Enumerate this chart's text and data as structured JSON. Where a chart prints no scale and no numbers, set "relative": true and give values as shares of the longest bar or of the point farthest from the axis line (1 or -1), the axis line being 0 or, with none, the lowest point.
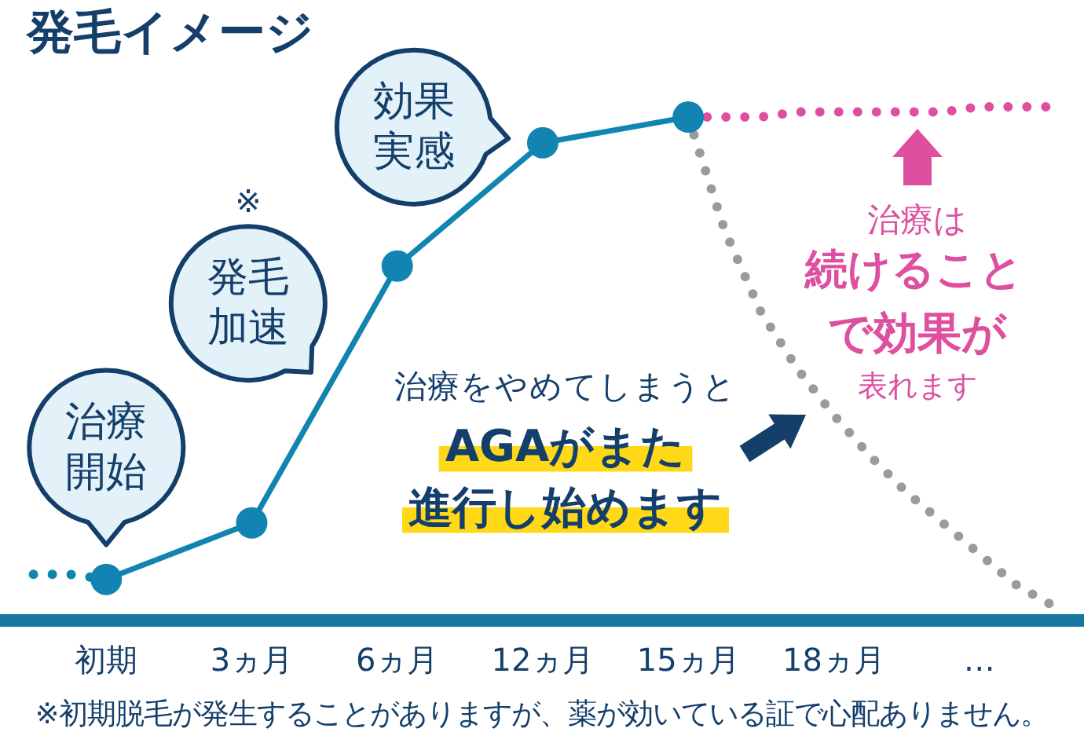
{
  "chart_data": {
    "type": "line",
    "title": "発毛イメージ",
    "relative": true,
    "categories": [
      null,
      null,
      "初期",
      null,
      null,
      null,
      "3ヵ月",
      null,
      null,
      null,
      "6ヵ月",
      null,
      null,
      null,
      "12ヵ月",
      null,
      null,
      null,
      "15ヵ月",
      null,
      null,
      null,
      "18ヵ月",
      null,
      null,
      null,
      "…",
      null,
      null
    ],
    "tick_labels": "x",
    "series": [
      {
        "color": "#1184b1",
        "line_style": "dotted",
        "marker": "none",
        "values": [
          0.09,
          0.09,
          0.08,
          null,
          null,
          null,
          null,
          null,
          null,
          null,
          null,
          null,
          null,
          null,
          null,
          null,
          null,
          null,
          null,
          null,
          null,
          null,
          null,
          null,
          null,
          null,
          null,
          null,
          null
        ]
      },
      {
        "color": "#1184b1",
        "line_style": "solid",
        "marker": "circle",
        "x": [
          "初期",
          "3ヵ月",
          "6ヵ月",
          "12ヵ月",
          "15ヵ月"
        ],
        "values": [
          0.08,
          0.19,
          0.69,
          0.93,
          0.98
        ]
      },
      {
        "color": "#df4f9f",
        "line_style": "dotted",
        "marker": "none",
        "values": [
          null,
          null,
          null,
          null,
          null,
          null,
          null,
          null,
          null,
          null,
          null,
          null,
          null,
          null,
          null,
          null,
          null,
          null,
          0.98,
          0.98,
          0.98,
          0.99,
          0.99,
          0.99,
          0.99,
          0.99,
          1,
          1,
          1
        ]
      },
      {
        "color": "#9b9b9b",
        "line_style": "dotted",
        "marker": "none",
        "values": [
          null,
          null,
          null,
          null,
          null,
          null,
          null,
          null,
          null,
          null,
          null,
          null,
          null,
          null,
          null,
          null,
          null,
          null,
          0.98,
          0.76,
          0.6,
          0.49,
          0.4,
          0.32,
          0.25,
          0.19,
          0.13,
          0.07,
          0.03
        ]
      }
    ],
    "annotations": [
      {
        "text": "治療開始",
        "x": "初期",
        "y": 0.08
      },
      "発毛加速",
      {
        "text": "効果実感",
        "x": "12ヵ月",
        "y": 0.93
      },
      "※",
      "治療をやめてしまうと",
      "AGAがまた",
      "進行し始めます",
      "治療は",
      "続けること",
      "で効果が",
      "表れます",
      "※初期脱毛が発生することがありますが、薬が効いている証で心配ありません。"
    ]
  }
}
